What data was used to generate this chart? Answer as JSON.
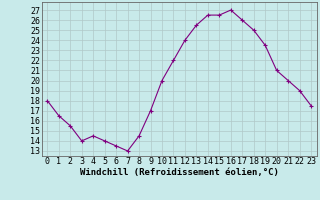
{
  "x": [
    0,
    1,
    2,
    3,
    4,
    5,
    6,
    7,
    8,
    9,
    10,
    11,
    12,
    13,
    14,
    15,
    16,
    17,
    18,
    19,
    20,
    21,
    22,
    23
  ],
  "y": [
    18,
    16.5,
    15.5,
    14,
    14.5,
    14,
    13.5,
    13,
    14.5,
    17,
    20,
    22,
    24,
    25.5,
    26.5,
    26.5,
    27,
    26,
    25,
    23.5,
    21,
    20,
    19,
    17.5
  ],
  "line_color": "#800080",
  "marker": "+",
  "markersize": 3.5,
  "linewidth": 0.8,
  "background_color": "#c8eaea",
  "grid_color": "#b0c8c8",
  "xlabel": "Windchill (Refroidissement éolien,°C)",
  "xlabel_fontsize": 6.5,
  "ylabel_values": [
    13,
    14,
    15,
    16,
    17,
    18,
    19,
    20,
    21,
    22,
    23,
    24,
    25,
    26,
    27
  ],
  "ylim": [
    12.5,
    27.8
  ],
  "xlim": [
    -0.5,
    23.5
  ],
  "tick_fontsize": 6,
  "xticks": [
    0,
    1,
    2,
    3,
    4,
    5,
    6,
    7,
    8,
    9,
    10,
    11,
    12,
    13,
    14,
    15,
    16,
    17,
    18,
    19,
    20,
    21,
    22,
    23
  ]
}
